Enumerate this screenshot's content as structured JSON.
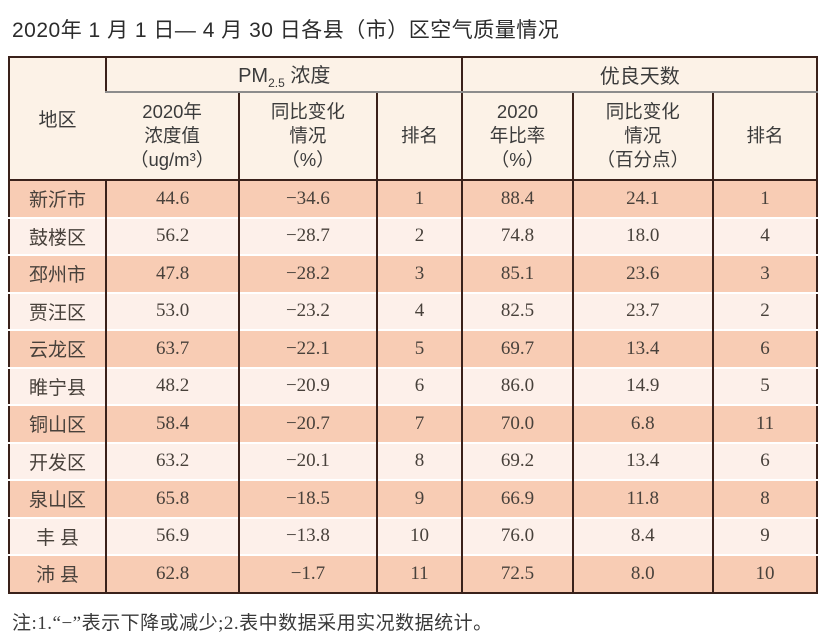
{
  "title": "2020年 1 月 1 日— 4 月 30 日各县（市）区空气质量情况",
  "note": "注:1.“−”表示下降或减少;2.表中数据采用实况数据统计。",
  "colors": {
    "row_odd": "#f8ccb4",
    "row_even": "#fdf0ea",
    "header_bg": "#fcf2e7",
    "border_dark": "#3a211a",
    "group_divider_gray": "#8c8c8c",
    "text": "#48413b"
  },
  "table": {
    "header": {
      "region": "地区",
      "pm25_group": {
        "base": "PM",
        "sub": "2.5",
        "rest": " 浓度"
      },
      "days_group": "优良天数",
      "sub_pm_value": "2020年\n浓度值\n（ug/m³）",
      "sub_pm_change": "同比变化\n情况\n（%）",
      "sub_pm_rank": "排名",
      "sub_days_rate": "2020\n年比率\n（%）",
      "sub_days_change": "同比变化\n情况\n（百分点）",
      "sub_days_rank": "排名"
    },
    "rows": [
      {
        "region": "新沂市",
        "pm_value": "44.6",
        "pm_change": "−34.6",
        "pm_rank": "1",
        "days_rate": "88.4",
        "days_change": "24.1",
        "days_rank": "1"
      },
      {
        "region": "鼓楼区",
        "pm_value": "56.2",
        "pm_change": "−28.7",
        "pm_rank": "2",
        "days_rate": "74.8",
        "days_change": "18.0",
        "days_rank": "4"
      },
      {
        "region": "邳州市",
        "pm_value": "47.8",
        "pm_change": "−28.2",
        "pm_rank": "3",
        "days_rate": "85.1",
        "days_change": "23.6",
        "days_rank": "3"
      },
      {
        "region": "贾汪区",
        "pm_value": "53.0",
        "pm_change": "−23.2",
        "pm_rank": "4",
        "days_rate": "82.5",
        "days_change": "23.7",
        "days_rank": "2"
      },
      {
        "region": "云龙区",
        "pm_value": "63.7",
        "pm_change": "−22.1",
        "pm_rank": "5",
        "days_rate": "69.7",
        "days_change": "13.4",
        "days_rank": "6"
      },
      {
        "region": "睢宁县",
        "pm_value": "48.2",
        "pm_change": "−20.9",
        "pm_rank": "6",
        "days_rate": "86.0",
        "days_change": "14.9",
        "days_rank": "5"
      },
      {
        "region": "铜山区",
        "pm_value": "58.4",
        "pm_change": "−20.7",
        "pm_rank": "7",
        "days_rate": "70.0",
        "days_change": "6.8",
        "days_rank": "11"
      },
      {
        "region": "开发区",
        "pm_value": "63.2",
        "pm_change": "−20.1",
        "pm_rank": "8",
        "days_rate": "69.2",
        "days_change": "13.4",
        "days_rank": "6"
      },
      {
        "region": "泉山区",
        "pm_value": "65.8",
        "pm_change": "−18.5",
        "pm_rank": "9",
        "days_rate": "66.9",
        "days_change": "11.8",
        "days_rank": "8"
      },
      {
        "region": "丰 县",
        "pm_value": "56.9",
        "pm_change": "−13.8",
        "pm_rank": "10",
        "days_rate": "76.0",
        "days_change": "8.4",
        "days_rank": "9"
      },
      {
        "region": "沛 县",
        "pm_value": "62.8",
        "pm_change": "−1.7",
        "pm_rank": "11",
        "days_rate": "72.5",
        "days_change": "8.0",
        "days_rank": "10"
      }
    ]
  }
}
